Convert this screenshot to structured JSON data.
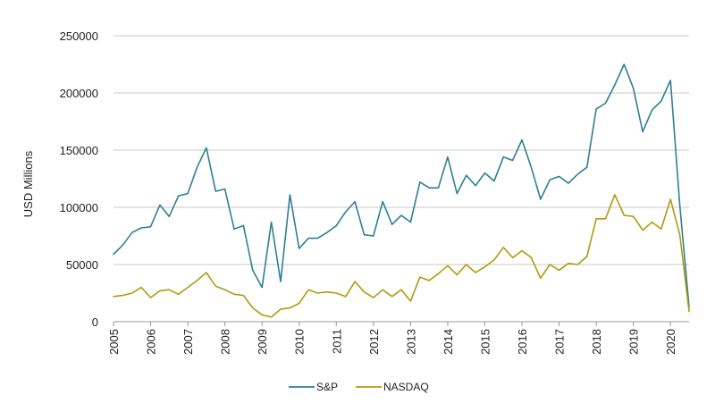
{
  "chart_data": {
    "type": "line",
    "title": "",
    "xlabel": "",
    "ylabel": "USD Millions",
    "ylim": [
      0,
      250000
    ],
    "yticks": [
      0,
      50000,
      100000,
      150000,
      200000,
      250000
    ],
    "ytick_labels": [
      "0",
      "50000",
      "100000",
      "150000",
      "200000",
      "250000"
    ],
    "xlim": [
      2005,
      2020.5
    ],
    "xticks": [
      2005,
      2006,
      2007,
      2008,
      2009,
      2010,
      2011,
      2012,
      2013,
      2014,
      2015,
      2016,
      2017,
      2018,
      2019,
      2020
    ],
    "xtick_labels": [
      "2005",
      "2006",
      "2007",
      "2008",
      "2009",
      "2010",
      "2011",
      "2012",
      "2013",
      "2014",
      "2015",
      "2016",
      "2017",
      "2018",
      "2019",
      "2020"
    ],
    "grid": "horizontal",
    "legend_position": "bottom-center",
    "x": [
      2005,
      2005.25,
      2005.5,
      2005.75,
      2006,
      2006.25,
      2006.5,
      2006.75,
      2007,
      2007.25,
      2007.5,
      2007.75,
      2008,
      2008.25,
      2008.5,
      2008.75,
      2009,
      2009.25,
      2009.5,
      2009.75,
      2010,
      2010.25,
      2010.5,
      2010.75,
      2011,
      2011.25,
      2011.5,
      2011.75,
      2012,
      2012.25,
      2012.5,
      2012.75,
      2013,
      2013.25,
      2013.5,
      2013.75,
      2014,
      2014.25,
      2014.5,
      2014.75,
      2015,
      2015.25,
      2015.5,
      2015.75,
      2016,
      2016.25,
      2016.5,
      2016.75,
      2017,
      2017.25,
      2017.5,
      2017.75,
      2018,
      2018.25,
      2018.5,
      2018.75,
      2019,
      2019.25,
      2019.5,
      2019.75,
      2020,
      2020.25,
      2020.5
    ],
    "series": [
      {
        "name": "S&P",
        "color": "#2e7f96",
        "values": [
          59000,
          67000,
          78000,
          82000,
          83000,
          102000,
          92000,
          110000,
          112000,
          135000,
          152000,
          114000,
          116000,
          81000,
          84000,
          45000,
          30000,
          87000,
          35000,
          111000,
          64000,
          73000,
          73000,
          78000,
          84000,
          96000,
          105000,
          76000,
          75000,
          105000,
          85000,
          93000,
          87000,
          122000,
          117000,
          117000,
          144000,
          112000,
          128000,
          119000,
          130000,
          123000,
          144000,
          141000,
          159000,
          135000,
          107000,
          124000,
          127000,
          121000,
          129000,
          135000,
          186000,
          191000,
          207000,
          225000,
          204000,
          166000,
          185000,
          193000,
          211000,
          102000,
          13000
        ]
      },
      {
        "name": "NASDAQ",
        "color": "#b5980f",
        "values": [
          22000,
          23000,
          25000,
          30000,
          21000,
          27000,
          28000,
          24000,
          30000,
          36000,
          43000,
          31000,
          28000,
          24000,
          23000,
          12000,
          6000,
          4000,
          11000,
          12000,
          16000,
          28000,
          25000,
          26000,
          25000,
          22000,
          35000,
          26000,
          21000,
          28000,
          22000,
          28000,
          18000,
          39000,
          36000,
          42000,
          49000,
          41000,
          50000,
          43000,
          48000,
          54000,
          65000,
          56000,
          62000,
          56000,
          38000,
          50000,
          45000,
          51000,
          50000,
          57000,
          90000,
          90000,
          111000,
          93000,
          92000,
          80000,
          87000,
          81000,
          107000,
          76000,
          9000
        ]
      }
    ]
  }
}
